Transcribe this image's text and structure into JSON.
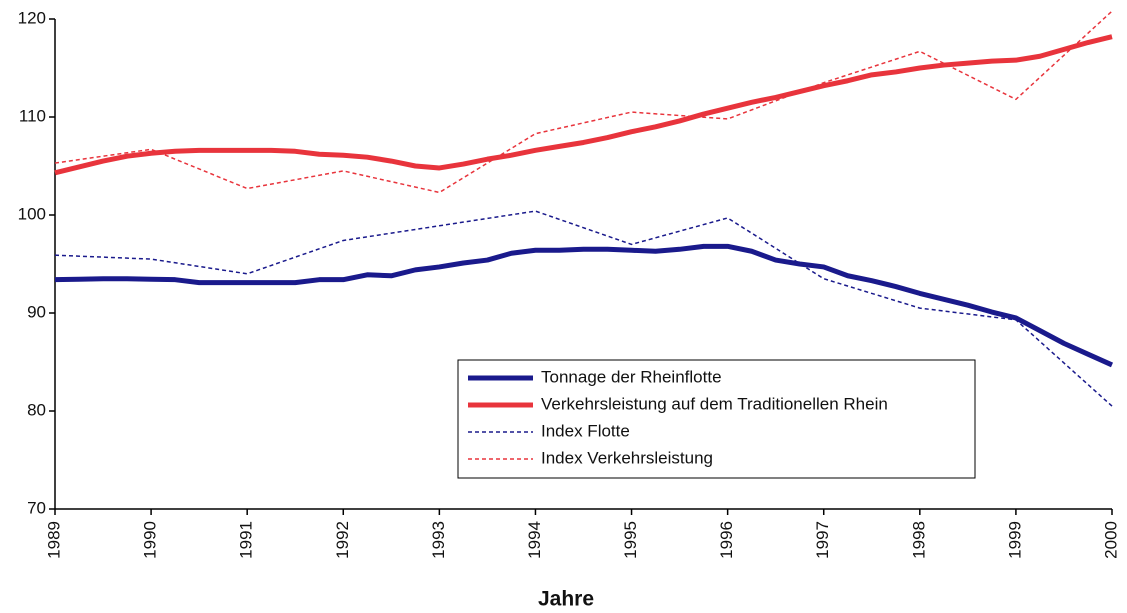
{
  "chart_data": {
    "type": "line",
    "xlabel": "Jahre",
    "xlim": [
      1989,
      2000
    ],
    "xticks": [
      1989,
      1990,
      1991,
      1992,
      1993,
      1994,
      1995,
      1996,
      1997,
      1998,
      1999,
      2000
    ],
    "ylim": [
      70,
      120
    ],
    "yticks": [
      70,
      80,
      90,
      100,
      110,
      120
    ],
    "grid": false,
    "legend": "lower right",
    "series": [
      {
        "name": "Tonnage der Rheinflotte",
        "color": "#1a1a8c",
        "style": "solid",
        "x": [
          1989,
          1989.25,
          1989.5,
          1989.75,
          1990,
          1990.25,
          1990.5,
          1990.75,
          1991,
          1991.25,
          1991.5,
          1991.75,
          1992,
          1992.25,
          1992.5,
          1992.75,
          1993,
          1993.25,
          1993.5,
          1993.75,
          1994,
          1994.25,
          1994.5,
          1994.75,
          1995,
          1995.25,
          1995.5,
          1995.75,
          1996,
          1996.25,
          1996.5,
          1996.75,
          1997,
          1997.25,
          1997.5,
          1997.75,
          1998,
          1998.25,
          1998.5,
          1998.75,
          1999,
          1999.25,
          1999.5,
          1999.75,
          2000
        ],
        "values": [
          93.4,
          93.45,
          93.5,
          93.5,
          93.45,
          93.4,
          93.1,
          93.1,
          93.1,
          93.1,
          93.1,
          93.4,
          93.4,
          93.9,
          93.8,
          94.4,
          94.7,
          95.1,
          95.4,
          96.1,
          96.4,
          96.4,
          96.5,
          96.5,
          96.4,
          96.3,
          96.5,
          96.8,
          96.8,
          96.3,
          95.4,
          95.0,
          94.7,
          93.8,
          93.3,
          92.7,
          92.0,
          91.4,
          90.8,
          90.1,
          89.5,
          88.2,
          86.9,
          85.8,
          84.7
        ]
      },
      {
        "name": "Verkehrsleistung auf dem Traditionellen Rhein",
        "color": "#e8343c",
        "style": "solid",
        "x": [
          1989,
          1989.25,
          1989.5,
          1989.75,
          1990,
          1990.25,
          1990.5,
          1990.75,
          1991,
          1991.25,
          1991.5,
          1991.75,
          1992,
          1992.25,
          1992.5,
          1992.75,
          1993,
          1993.25,
          1993.5,
          1993.75,
          1994,
          1994.25,
          1994.5,
          1994.75,
          1995,
          1995.25,
          1995.5,
          1995.75,
          1996,
          1996.25,
          1996.5,
          1996.75,
          1997,
          1997.25,
          1997.5,
          1997.75,
          1998,
          1998.25,
          1998.5,
          1998.75,
          1999,
          1999.25,
          1999.5,
          1999.75,
          2000
        ],
        "values": [
          104.3,
          104.9,
          105.5,
          106.0,
          106.3,
          106.5,
          106.6,
          106.6,
          106.6,
          106.6,
          106.5,
          106.2,
          106.1,
          105.9,
          105.5,
          105.0,
          104.8,
          105.2,
          105.7,
          106.1,
          106.6,
          107.0,
          107.4,
          107.9,
          108.5,
          109.0,
          109.6,
          110.3,
          110.9,
          111.5,
          112.0,
          112.6,
          113.2,
          113.7,
          114.3,
          114.6,
          115.0,
          115.3,
          115.5,
          115.7,
          115.8,
          116.2,
          116.9,
          117.6,
          118.2
        ]
      },
      {
        "name": "Index Flotte",
        "color": "#1a1a8c",
        "style": "dashed",
        "x": [
          1989,
          1990,
          1991,
          1992,
          1993,
          1994,
          1995,
          1996,
          1997,
          1998,
          1999,
          2000
        ],
        "values": [
          95.9,
          95.5,
          94.0,
          97.4,
          98.9,
          100.4,
          97.0,
          99.7,
          93.5,
          90.5,
          89.3,
          80.5
        ]
      },
      {
        "name": "Index Verkehrsleistung",
        "color": "#e8343c",
        "style": "dashed",
        "x": [
          1989,
          1990,
          1991,
          1992,
          1993,
          1994,
          1995,
          1996,
          1997,
          1998,
          1999,
          2000
        ],
        "values": [
          105.3,
          106.7,
          102.7,
          104.5,
          102.3,
          108.3,
          110.5,
          109.8,
          113.5,
          116.7,
          111.8,
          120.8
        ]
      }
    ]
  }
}
